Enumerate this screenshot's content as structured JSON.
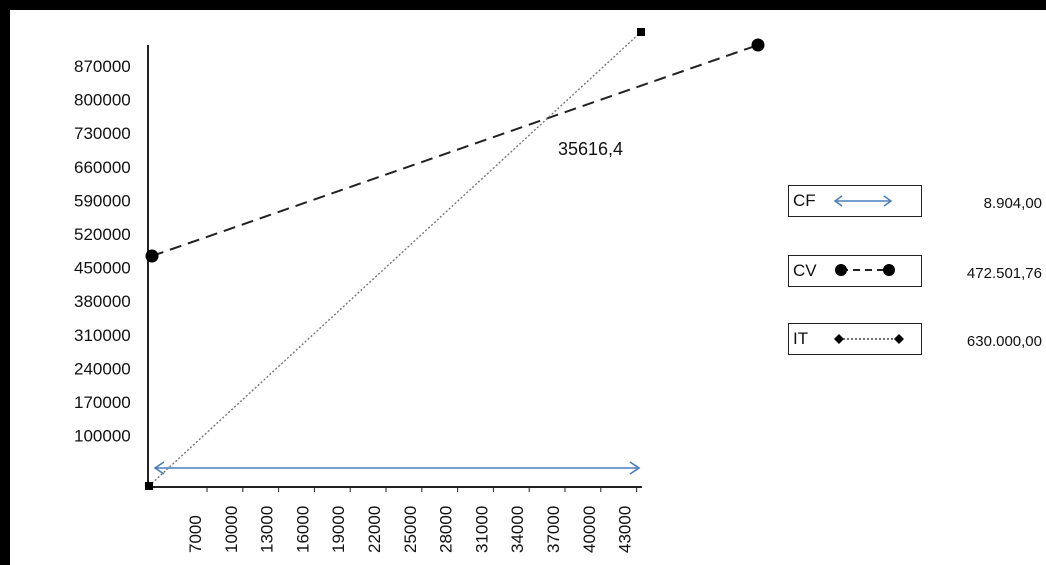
{
  "chart_data": {
    "type": "line",
    "title": "",
    "xlabel": "",
    "ylabel": "",
    "y_ticks": [
      "100000",
      "170000",
      "240000",
      "310000",
      "380000",
      "450000",
      "520000",
      "590000",
      "660000",
      "730000",
      "800000",
      "870000"
    ],
    "x_ticks": [
      "7000",
      "10000",
      "13000",
      "16000",
      "19000",
      "22000",
      "25000",
      "28000",
      "31000",
      "34000",
      "37000",
      "40000",
      "43000"
    ],
    "ylim": [
      0,
      900000
    ],
    "xlim": [
      0,
      45000
    ],
    "annotation": "35616,4",
    "series": [
      {
        "name": "CF",
        "style": "double-arrow",
        "color": "#4a7ebb",
        "points": [
          [
            0,
            8904
          ],
          [
            45000,
            8904
          ]
        ]
      },
      {
        "name": "CV",
        "style": "dashed-circle",
        "color": "#222222",
        "points": [
          [
            0,
            472501.76
          ],
          [
            57000,
            920000
          ]
        ]
      },
      {
        "name": "IT",
        "style": "dotted-square",
        "color": "#777777",
        "points": [
          [
            0,
            0
          ],
          [
            45000,
            950000
          ]
        ]
      }
    ],
    "legend": {
      "placement": "right",
      "entries": [
        {
          "label": "CF",
          "value": "8.904,00",
          "swatch": "arrow"
        },
        {
          "label": "CV",
          "value": "472.501,76",
          "swatch": "circle-dash"
        },
        {
          "label": "IT",
          "value": "630.000,00",
          "swatch": "diamond-dot"
        }
      ]
    }
  }
}
